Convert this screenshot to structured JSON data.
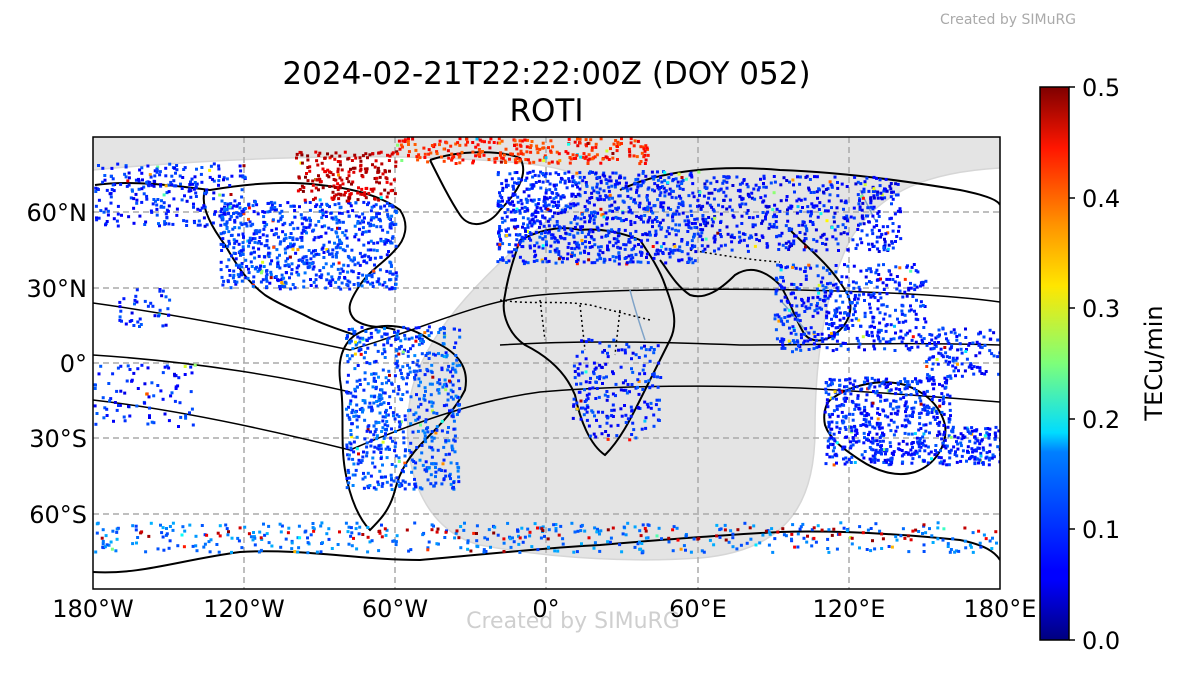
{
  "watermark": "Created by SIMuRG",
  "title_line1": "2024-02-21T22:22:00Z (DOY 052)",
  "title_line2": "ROTI",
  "x_ticks": [
    "180°W",
    "120°W",
    "60°W",
    "0°",
    "60°E",
    "120°E",
    "180°E"
  ],
  "y_ticks": [
    "60°N",
    "30°N",
    "0°",
    "30°S",
    "60°S"
  ],
  "colorbar": {
    "label": "TECu/min",
    "ticks": [
      "0.0",
      "0.1",
      "0.2",
      "0.3",
      "0.4",
      "0.5"
    ],
    "range": [
      0,
      0.5
    ],
    "colormap": "jet"
  },
  "map": {
    "projection": "PlateCarree",
    "lon_range": [
      -180,
      180
    ],
    "lat_range": [
      -90,
      90
    ],
    "gridlines": true,
    "night_shading_color": "#e4e4e4"
  },
  "colors": {
    "low": "#0000c8",
    "mid": "#00a0ff",
    "high": "#800000",
    "coast": "#000000",
    "rivers": "#7fa3c8",
    "grid": "#aaaaaa"
  }
}
